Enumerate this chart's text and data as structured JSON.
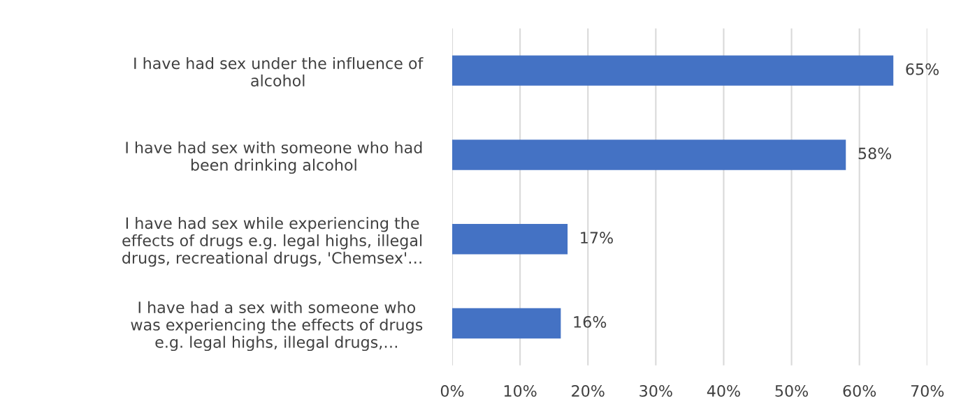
{
  "chart_data": {
    "type": "bar",
    "orientation": "horizontal",
    "categories": [
      "I have had sex under the influence of\nalcohol",
      "I have had sex with someone who had\nbeen drinking alcohol",
      "I have had sex while experiencing the\neffects of drugs e.g. legal highs, illegal\ndrugs, recreational drugs, 'Chemsex'…",
      "I have had a sex with someone who\nwas experiencing the effects of drugs\ne.g. legal highs, illegal drugs,…"
    ],
    "values": [
      65,
      58,
      17,
      16
    ],
    "value_labels": [
      "65%",
      "58%",
      "17%",
      "16%"
    ],
    "color": "#4472c4",
    "xlim": [
      0,
      70
    ],
    "xticks": [
      {
        "value": 0,
        "label": "0%"
      },
      {
        "value": 10,
        "label": "10%"
      },
      {
        "value": 20,
        "label": "20%"
      },
      {
        "value": 30,
        "label": "30%"
      },
      {
        "value": 40,
        "label": "40%"
      },
      {
        "value": 50,
        "label": "50%"
      },
      {
        "value": 60,
        "label": "60%"
      },
      {
        "value": 70,
        "label": "70%"
      }
    ],
    "grid": "x",
    "legend": false
  }
}
